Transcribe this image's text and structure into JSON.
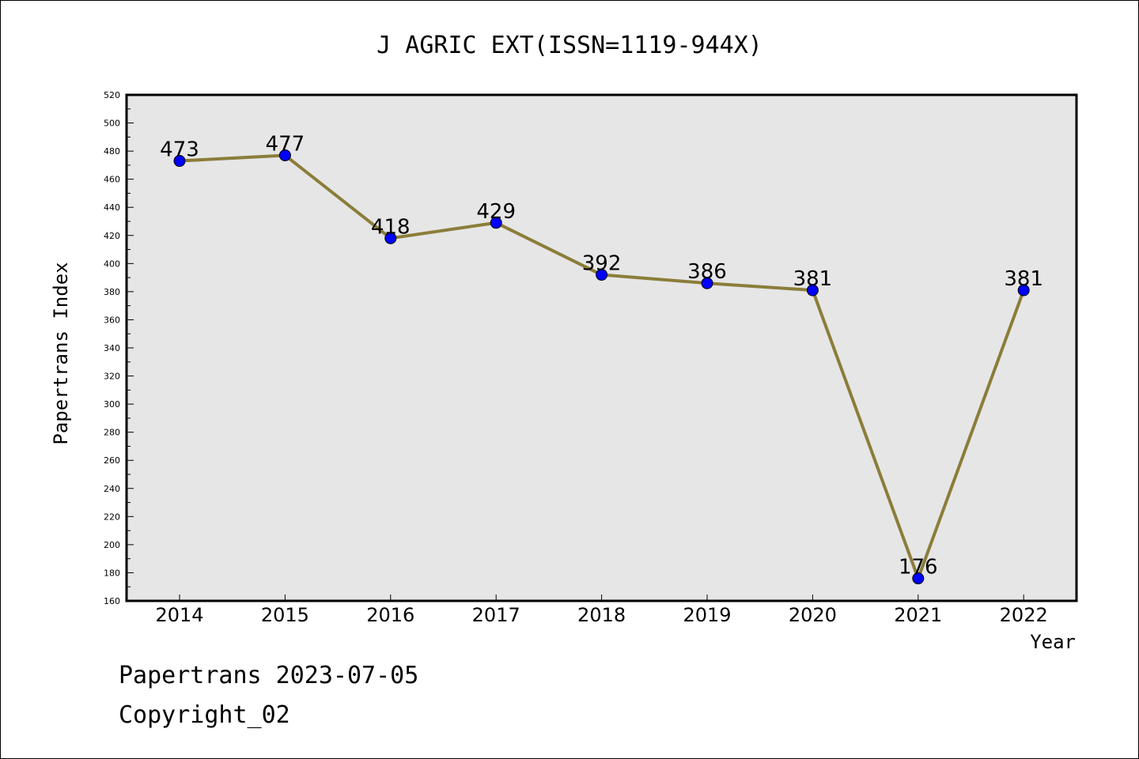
{
  "chart_data": {
    "type": "line",
    "title": "J AGRIC EXT(ISSN=1119-944X)",
    "xlabel": "Year",
    "ylabel": "Papertrans Index",
    "categories": [
      "2014",
      "2015",
      "2016",
      "2017",
      "2018",
      "2019",
      "2020",
      "2021",
      "2022"
    ],
    "series": [
      {
        "values": [
          473,
          477,
          418,
          429,
          392,
          386,
          381,
          176,
          381
        ]
      }
    ],
    "ylim": [
      160,
      520
    ],
    "yticks": [
      160,
      180,
      200,
      220,
      240,
      260,
      280,
      300,
      320,
      340,
      360,
      380,
      400,
      420,
      440,
      460,
      480,
      500,
      520
    ],
    "grid": false,
    "legend": "none",
    "colors": {
      "plot_background": "#e6e6e6",
      "line": "#8b7d3a",
      "marker": "#0000ff"
    }
  },
  "footer": {
    "line1": "Papertrans 2023-07-05",
    "line2": "Copyright_02"
  }
}
